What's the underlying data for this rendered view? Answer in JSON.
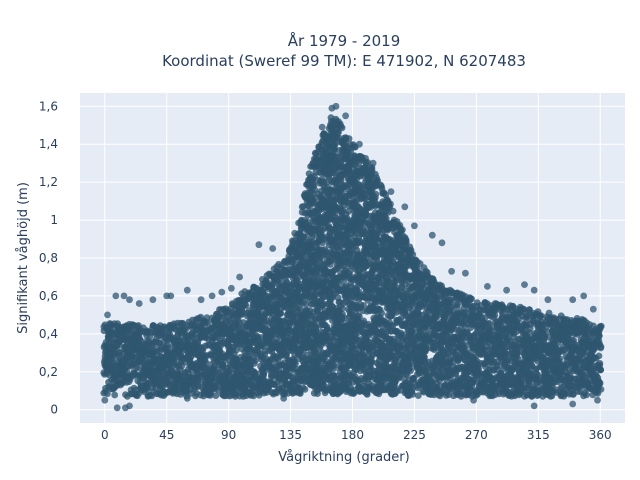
{
  "chart_data": {
    "type": "scatter",
    "title_line1": "År 1979 - 2019",
    "title_line2": "Koordinat (Sweref 99 TM): E 471902, N 6207483",
    "xlabel": "Vågriktning (grader)",
    "ylabel": "Signifikant våghöjd (m)",
    "xlim": [
      -18,
      378
    ],
    "ylim": [
      -0.07,
      1.67
    ],
    "x_ticks": [
      0,
      45,
      90,
      135,
      180,
      225,
      270,
      315,
      360
    ],
    "x_tick_labels": [
      "0",
      "45",
      "90",
      "135",
      "180",
      "225",
      "270",
      "315",
      "360"
    ],
    "y_ticks": [
      0,
      0.2,
      0.4,
      0.6,
      0.8,
      1.0,
      1.2,
      1.4,
      1.6
    ],
    "y_tick_labels": [
      "0",
      "0,2",
      "0,4",
      "0,6",
      "0,8",
      "1",
      "1,2",
      "1,4",
      "1,6"
    ],
    "grid": true,
    "marker_color": "#2f5670",
    "background_color": "#e5ecf6",
    "envelope": {
      "direction": [
        0,
        10,
        20,
        30,
        45,
        60,
        75,
        90,
        100,
        110,
        120,
        130,
        140,
        150,
        160,
        165,
        170,
        175,
        180,
        190,
        200,
        210,
        225,
        240,
        255,
        270,
        285,
        300,
        315,
        330,
        345,
        360
      ],
      "lower": [
        0.08,
        0.07,
        0.07,
        0.07,
        0.07,
        0.07,
        0.07,
        0.07,
        0.07,
        0.07,
        0.08,
        0.08,
        0.08,
        0.08,
        0.08,
        0.08,
        0.08,
        0.08,
        0.08,
        0.08,
        0.08,
        0.08,
        0.07,
        0.07,
        0.07,
        0.07,
        0.07,
        0.07,
        0.07,
        0.07,
        0.07,
        0.08
      ],
      "upper": [
        0.45,
        0.46,
        0.45,
        0.45,
        0.45,
        0.47,
        0.5,
        0.55,
        0.62,
        0.67,
        0.72,
        0.8,
        0.95,
        1.3,
        1.48,
        1.55,
        1.53,
        1.45,
        1.4,
        1.32,
        1.2,
        1.05,
        0.82,
        0.68,
        0.62,
        0.58,
        0.56,
        0.55,
        0.52,
        0.5,
        0.48,
        0.45
      ]
    },
    "outliers": [
      {
        "x": 2,
        "y": 0.5
      },
      {
        "x": 8,
        "y": 0.6
      },
      {
        "x": 14,
        "y": 0.6
      },
      {
        "x": 18,
        "y": 0.58
      },
      {
        "x": 25,
        "y": 0.56
      },
      {
        "x": 35,
        "y": 0.58
      },
      {
        "x": 45,
        "y": 0.6
      },
      {
        "x": 48,
        "y": 0.6
      },
      {
        "x": 60,
        "y": 0.63
      },
      {
        "x": 70,
        "y": 0.58
      },
      {
        "x": 78,
        "y": 0.6
      },
      {
        "x": 85,
        "y": 0.62
      },
      {
        "x": 92,
        "y": 0.64
      },
      {
        "x": 98,
        "y": 0.7
      },
      {
        "x": 112,
        "y": 0.87
      },
      {
        "x": 122,
        "y": 0.85
      },
      {
        "x": 138,
        "y": 0.93
      },
      {
        "x": 143,
        "y": 1.0
      },
      {
        "x": 152,
        "y": 1.28
      },
      {
        "x": 158,
        "y": 1.49
      },
      {
        "x": 165,
        "y": 1.59
      },
      {
        "x": 168,
        "y": 1.6
      },
      {
        "x": 175,
        "y": 1.55
      },
      {
        "x": 185,
        "y": 1.4
      },
      {
        "x": 195,
        "y": 1.3
      },
      {
        "x": 208,
        "y": 1.15
      },
      {
        "x": 218,
        "y": 1.07
      },
      {
        "x": 225,
        "y": 0.97
      },
      {
        "x": 238,
        "y": 0.92
      },
      {
        "x": 245,
        "y": 0.88
      },
      {
        "x": 252,
        "y": 0.73
      },
      {
        "x": 262,
        "y": 0.72
      },
      {
        "x": 278,
        "y": 0.65
      },
      {
        "x": 292,
        "y": 0.63
      },
      {
        "x": 305,
        "y": 0.66
      },
      {
        "x": 312,
        "y": 0.63
      },
      {
        "x": 322,
        "y": 0.58
      },
      {
        "x": 340,
        "y": 0.58
      },
      {
        "x": 348,
        "y": 0.6
      },
      {
        "x": 355,
        "y": 0.53
      },
      {
        "x": 9,
        "y": 0.01
      },
      {
        "x": 15,
        "y": 0.01
      },
      {
        "x": 18,
        "y": 0.02
      },
      {
        "x": 0,
        "y": 0.05
      },
      {
        "x": 60,
        "y": 0.06
      },
      {
        "x": 130,
        "y": 0.06
      },
      {
        "x": 268,
        "y": 0.05
      },
      {
        "x": 312,
        "y": 0.02
      },
      {
        "x": 340,
        "y": 0.03
      },
      {
        "x": 358,
        "y": 0.05
      }
    ]
  }
}
